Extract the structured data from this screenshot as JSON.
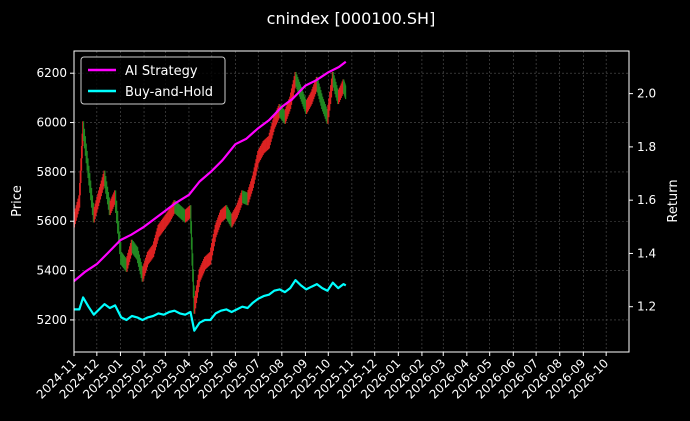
{
  "chart_data": {
    "type": "line",
    "title": "cnindex [000100.SH]",
    "ylabel": "Price",
    "y2label": "Return",
    "ylim": [
      5070,
      6290
    ],
    "y2lim": [
      1.03,
      2.16
    ],
    "yticks": [
      5200,
      5400,
      5600,
      5800,
      6000,
      6200
    ],
    "y2ticks": [
      1.2,
      1.4,
      1.6,
      1.8,
      2.0
    ],
    "grid": true,
    "legend": "top-left",
    "x_start": "2024-11-01",
    "x_end": "2026-10-31",
    "xticks": [
      "2024-11",
      "2024-12",
      "2025-01",
      "2025-02",
      "2025-03",
      "2025-04",
      "2025-05",
      "2025-06",
      "2025-07",
      "2025-08",
      "2025-09",
      "2025-10",
      "2025-11",
      "2025-12",
      "2026-01",
      "2026-02",
      "2026-03",
      "2026-04",
      "2026-05",
      "2026-06",
      "2026-07",
      "2026-08",
      "2026-09",
      "2026-10"
    ],
    "price_series": {
      "name": "",
      "points": [
        [
          "2024-11-01",
          5600
        ],
        [
          "2024-11-08",
          5680
        ],
        [
          "2024-11-13",
          5980
        ],
        [
          "2024-11-20",
          5800
        ],
        [
          "2024-11-27",
          5620
        ],
        [
          "2024-12-04",
          5700
        ],
        [
          "2024-12-11",
          5780
        ],
        [
          "2024-12-18",
          5650
        ],
        [
          "2024-12-25",
          5700
        ],
        [
          "2025-01-02",
          5450
        ],
        [
          "2025-01-09",
          5420
        ],
        [
          "2025-01-16",
          5500
        ],
        [
          "2025-01-23",
          5470
        ],
        [
          "2025-01-30",
          5380
        ],
        [
          "2025-02-06",
          5450
        ],
        [
          "2025-02-13",
          5480
        ],
        [
          "2025-02-20",
          5560
        ],
        [
          "2025-02-27",
          5590
        ],
        [
          "2025-03-06",
          5620
        ],
        [
          "2025-03-13",
          5660
        ],
        [
          "2025-03-20",
          5640
        ],
        [
          "2025-03-27",
          5620
        ],
        [
          "2025-04-03",
          5640
        ],
        [
          "2025-04-08",
          5250
        ],
        [
          "2025-04-15",
          5380
        ],
        [
          "2025-04-22",
          5430
        ],
        [
          "2025-04-29",
          5450
        ],
        [
          "2025-05-06",
          5560
        ],
        [
          "2025-05-13",
          5620
        ],
        [
          "2025-05-20",
          5640
        ],
        [
          "2025-05-27",
          5600
        ],
        [
          "2025-06-03",
          5640
        ],
        [
          "2025-06-10",
          5700
        ],
        [
          "2025-06-17",
          5690
        ],
        [
          "2025-06-24",
          5760
        ],
        [
          "2025-07-01",
          5860
        ],
        [
          "2025-07-08",
          5900
        ],
        [
          "2025-07-15",
          5920
        ],
        [
          "2025-07-22",
          6000
        ],
        [
          "2025-07-29",
          6050
        ],
        [
          "2025-08-05",
          6020
        ],
        [
          "2025-08-12",
          6080
        ],
        [
          "2025-08-19",
          6180
        ],
        [
          "2025-08-26",
          6120
        ],
        [
          "2025-09-02",
          6060
        ],
        [
          "2025-09-09",
          6100
        ],
        [
          "2025-09-16",
          6160
        ],
        [
          "2025-09-23",
          6080
        ],
        [
          "2025-09-30",
          6020
        ],
        [
          "2025-10-07",
          6180
        ],
        [
          "2025-10-14",
          6100
        ],
        [
          "2025-10-21",
          6150
        ],
        [
          "2025-10-24",
          6120
        ]
      ]
    },
    "series": [
      {
        "name": "AI Strategy",
        "color": "#ff00ff",
        "points": [
          [
            "2024-11-01",
            1.296
          ],
          [
            "2024-11-15",
            1.33
          ],
          [
            "2024-12-01",
            1.36
          ],
          [
            "2024-12-15",
            1.4
          ],
          [
            "2025-01-01",
            1.45
          ],
          [
            "2025-01-15",
            1.47
          ],
          [
            "2025-02-01",
            1.5
          ],
          [
            "2025-02-15",
            1.53
          ],
          [
            "2025-03-01",
            1.56
          ],
          [
            "2025-03-15",
            1.59
          ],
          [
            "2025-04-01",
            1.62
          ],
          [
            "2025-04-15",
            1.67
          ],
          [
            "2025-05-01",
            1.71
          ],
          [
            "2025-05-15",
            1.75
          ],
          [
            "2025-06-01",
            1.81
          ],
          [
            "2025-06-15",
            1.83
          ],
          [
            "2025-07-01",
            1.87
          ],
          [
            "2025-07-15",
            1.9
          ],
          [
            "2025-08-01",
            1.95
          ],
          [
            "2025-08-15",
            1.98
          ],
          [
            "2025-09-01",
            2.03
          ],
          [
            "2025-09-15",
            2.05
          ],
          [
            "2025-10-01",
            2.08
          ],
          [
            "2025-10-15",
            2.1
          ],
          [
            "2025-10-24",
            2.12
          ]
        ]
      },
      {
        "name": "Buy-and-Hold",
        "color": "#00ffff",
        "points": [
          [
            "2024-11-01",
            1.19
          ],
          [
            "2024-11-08",
            1.19
          ],
          [
            "2024-11-13",
            1.235
          ],
          [
            "2024-11-20",
            1.2
          ],
          [
            "2024-11-27",
            1.17
          ],
          [
            "2024-12-04",
            1.19
          ],
          [
            "2024-12-11",
            1.21
          ],
          [
            "2024-12-18",
            1.195
          ],
          [
            "2024-12-25",
            1.205
          ],
          [
            "2025-01-02",
            1.16
          ],
          [
            "2025-01-09",
            1.15
          ],
          [
            "2025-01-16",
            1.165
          ],
          [
            "2025-01-23",
            1.16
          ],
          [
            "2025-01-30",
            1.15
          ],
          [
            "2025-02-06",
            1.16
          ],
          [
            "2025-02-13",
            1.165
          ],
          [
            "2025-02-20",
            1.175
          ],
          [
            "2025-02-27",
            1.17
          ],
          [
            "2025-03-06",
            1.18
          ],
          [
            "2025-03-13",
            1.185
          ],
          [
            "2025-03-20",
            1.175
          ],
          [
            "2025-03-27",
            1.17
          ],
          [
            "2025-04-03",
            1.18
          ],
          [
            "2025-04-08",
            1.11
          ],
          [
            "2025-04-15",
            1.14
          ],
          [
            "2025-04-22",
            1.15
          ],
          [
            "2025-04-29",
            1.15
          ],
          [
            "2025-05-06",
            1.175
          ],
          [
            "2025-05-13",
            1.185
          ],
          [
            "2025-05-20",
            1.19
          ],
          [
            "2025-05-27",
            1.18
          ],
          [
            "2025-06-03",
            1.19
          ],
          [
            "2025-06-10",
            1.2
          ],
          [
            "2025-06-17",
            1.195
          ],
          [
            "2025-06-24",
            1.215
          ],
          [
            "2025-07-01",
            1.23
          ],
          [
            "2025-07-08",
            1.24
          ],
          [
            "2025-07-15",
            1.245
          ],
          [
            "2025-07-22",
            1.26
          ],
          [
            "2025-07-29",
            1.265
          ],
          [
            "2025-08-05",
            1.255
          ],
          [
            "2025-08-12",
            1.27
          ],
          [
            "2025-08-19",
            1.3
          ],
          [
            "2025-08-26",
            1.28
          ],
          [
            "2025-09-02",
            1.265
          ],
          [
            "2025-09-09",
            1.275
          ],
          [
            "2025-09-16",
            1.285
          ],
          [
            "2025-09-23",
            1.27
          ],
          [
            "2025-09-30",
            1.26
          ],
          [
            "2025-10-07",
            1.29
          ],
          [
            "2025-10-14",
            1.27
          ],
          [
            "2025-10-21",
            1.285
          ],
          [
            "2025-10-24",
            1.28
          ]
        ]
      }
    ]
  }
}
